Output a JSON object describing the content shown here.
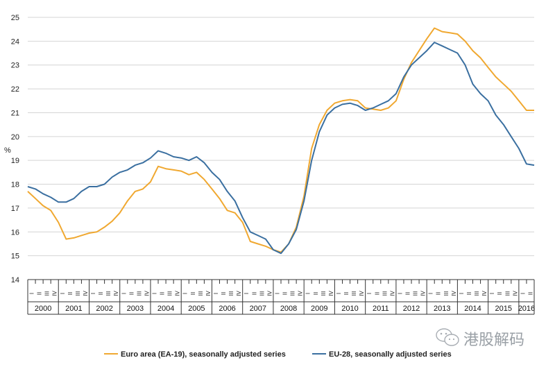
{
  "chart_data": {
    "type": "line",
    "title": "",
    "xlabel": "",
    "ylabel": "%",
    "ylim": [
      14,
      25
    ],
    "yticks": [
      "14",
      "15",
      "16",
      "17",
      "18",
      "19",
      "20",
      "21",
      "22",
      "23",
      "24",
      "25"
    ],
    "years": [
      "2000",
      "2001",
      "2002",
      "2003",
      "2004",
      "2005",
      "2006",
      "2007",
      "2008",
      "2009",
      "2010",
      "2011",
      "2012",
      "2013",
      "2014",
      "2015",
      "2016"
    ],
    "quarter_labels": [
      "I",
      "II",
      "III",
      "IV"
    ],
    "x_start": 2000.0,
    "x_end": 2016.5,
    "series": [
      {
        "name": "Euro area (EA-19), seasonally adjusted series",
        "color": "#f0a830",
        "points": [
          [
            2000.0,
            17.7
          ],
          [
            2000.25,
            17.4
          ],
          [
            2000.5,
            17.1
          ],
          [
            2000.75,
            16.9
          ],
          [
            2001.0,
            16.4
          ],
          [
            2001.25,
            15.7
          ],
          [
            2001.5,
            15.75
          ],
          [
            2001.75,
            15.85
          ],
          [
            2002.0,
            15.95
          ],
          [
            2002.25,
            16.0
          ],
          [
            2002.5,
            16.2
          ],
          [
            2002.75,
            16.45
          ],
          [
            2003.0,
            16.8
          ],
          [
            2003.25,
            17.3
          ],
          [
            2003.5,
            17.7
          ],
          [
            2003.75,
            17.8
          ],
          [
            2004.0,
            18.1
          ],
          [
            2004.25,
            18.75
          ],
          [
            2004.5,
            18.65
          ],
          [
            2004.75,
            18.6
          ],
          [
            2005.0,
            18.55
          ],
          [
            2005.25,
            18.4
          ],
          [
            2005.5,
            18.5
          ],
          [
            2005.75,
            18.2
          ],
          [
            2006.0,
            17.8
          ],
          [
            2006.25,
            17.4
          ],
          [
            2006.5,
            16.9
          ],
          [
            2006.75,
            16.8
          ],
          [
            2007.0,
            16.4
          ],
          [
            2007.25,
            15.6
          ],
          [
            2007.5,
            15.5
          ],
          [
            2007.75,
            15.4
          ],
          [
            2008.0,
            15.25
          ],
          [
            2008.25,
            15.15
          ],
          [
            2008.5,
            15.5
          ],
          [
            2008.75,
            16.2
          ],
          [
            2009.0,
            17.5
          ],
          [
            2009.25,
            19.5
          ],
          [
            2009.5,
            20.5
          ],
          [
            2009.75,
            21.1
          ],
          [
            2010.0,
            21.4
          ],
          [
            2010.25,
            21.5
          ],
          [
            2010.5,
            21.55
          ],
          [
            2010.75,
            21.5
          ],
          [
            2011.0,
            21.2
          ],
          [
            2011.25,
            21.15
          ],
          [
            2011.5,
            21.1
          ],
          [
            2011.75,
            21.2
          ],
          [
            2012.0,
            21.5
          ],
          [
            2012.25,
            22.4
          ],
          [
            2012.5,
            23.1
          ],
          [
            2012.75,
            23.6
          ],
          [
            2013.0,
            24.1
          ],
          [
            2013.25,
            24.55
          ],
          [
            2013.5,
            24.4
          ],
          [
            2013.75,
            24.35
          ],
          [
            2014.0,
            24.3
          ],
          [
            2014.25,
            24.0
          ],
          [
            2014.5,
            23.6
          ],
          [
            2014.75,
            23.3
          ],
          [
            2015.0,
            22.9
          ],
          [
            2015.25,
            22.5
          ],
          [
            2015.5,
            22.2
          ],
          [
            2015.75,
            21.9
          ],
          [
            2016.0,
            21.5
          ],
          [
            2016.25,
            21.1
          ],
          [
            2016.5,
            21.1
          ]
        ]
      },
      {
        "name": "EU-28, seasonally adjusted series",
        "color": "#3a6fa0",
        "points": [
          [
            2000.0,
            17.9
          ],
          [
            2000.25,
            17.8
          ],
          [
            2000.5,
            17.6
          ],
          [
            2000.75,
            17.45
          ],
          [
            2001.0,
            17.25
          ],
          [
            2001.25,
            17.25
          ],
          [
            2001.5,
            17.4
          ],
          [
            2001.75,
            17.7
          ],
          [
            2002.0,
            17.9
          ],
          [
            2002.25,
            17.9
          ],
          [
            2002.5,
            18.0
          ],
          [
            2002.75,
            18.3
          ],
          [
            2003.0,
            18.5
          ],
          [
            2003.25,
            18.6
          ],
          [
            2003.5,
            18.8
          ],
          [
            2003.75,
            18.9
          ],
          [
            2004.0,
            19.1
          ],
          [
            2004.25,
            19.4
          ],
          [
            2004.5,
            19.3
          ],
          [
            2004.75,
            19.15
          ],
          [
            2005.0,
            19.1
          ],
          [
            2005.25,
            19.0
          ],
          [
            2005.5,
            19.15
          ],
          [
            2005.75,
            18.9
          ],
          [
            2006.0,
            18.5
          ],
          [
            2006.25,
            18.2
          ],
          [
            2006.5,
            17.7
          ],
          [
            2006.75,
            17.3
          ],
          [
            2007.0,
            16.6
          ],
          [
            2007.25,
            16.0
          ],
          [
            2007.5,
            15.85
          ],
          [
            2007.75,
            15.7
          ],
          [
            2008.0,
            15.25
          ],
          [
            2008.25,
            15.1
          ],
          [
            2008.5,
            15.5
          ],
          [
            2008.75,
            16.1
          ],
          [
            2009.0,
            17.3
          ],
          [
            2009.25,
            19.0
          ],
          [
            2009.5,
            20.2
          ],
          [
            2009.75,
            20.9
          ],
          [
            2010.0,
            21.2
          ],
          [
            2010.25,
            21.35
          ],
          [
            2010.5,
            21.4
          ],
          [
            2010.75,
            21.3
          ],
          [
            2011.0,
            21.1
          ],
          [
            2011.25,
            21.2
          ],
          [
            2011.5,
            21.35
          ],
          [
            2011.75,
            21.5
          ],
          [
            2012.0,
            21.8
          ],
          [
            2012.25,
            22.5
          ],
          [
            2012.5,
            23.0
          ],
          [
            2012.75,
            23.3
          ],
          [
            2013.0,
            23.6
          ],
          [
            2013.25,
            23.95
          ],
          [
            2013.5,
            23.8
          ],
          [
            2013.75,
            23.65
          ],
          [
            2014.0,
            23.5
          ],
          [
            2014.25,
            23.0
          ],
          [
            2014.5,
            22.2
          ],
          [
            2014.75,
            21.8
          ],
          [
            2015.0,
            21.5
          ],
          [
            2015.25,
            20.9
          ],
          [
            2015.5,
            20.5
          ],
          [
            2015.75,
            20.0
          ],
          [
            2016.0,
            19.5
          ],
          [
            2016.25,
            18.85
          ],
          [
            2016.5,
            18.8
          ]
        ]
      }
    ],
    "legend_position": "bottom",
    "grid": true
  },
  "watermark": {
    "text": "港股解码",
    "icon": "wechat-logo-icon"
  }
}
